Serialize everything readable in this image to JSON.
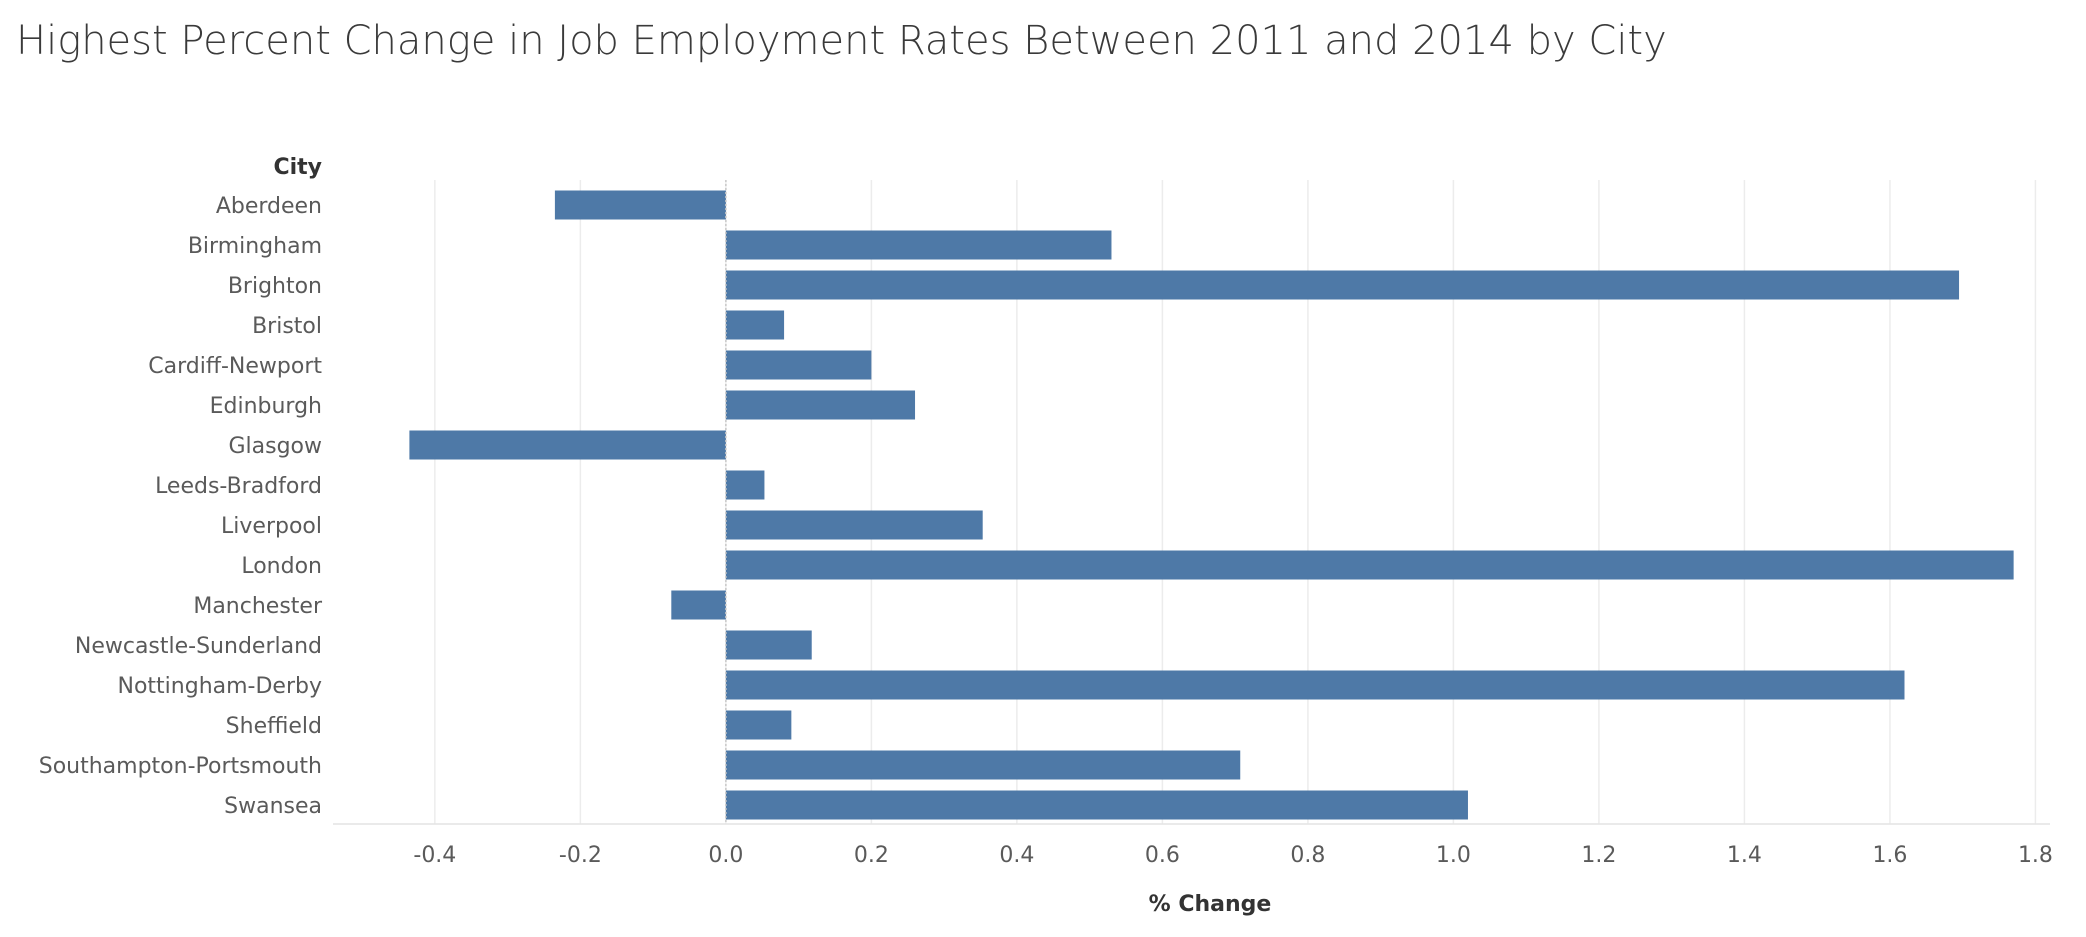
{
  "title": "Highest Percent Change in Job Employment Rates Between 2011 and 2014 by City",
  "chart_data": {
    "type": "bar",
    "orientation": "horizontal",
    "title": "Highest Percent Change in Job Employment Rates Between 2011 and 2014 by City",
    "ylabel": "City",
    "xlabel": "% Change",
    "categories": [
      "Aberdeen",
      "Birmingham",
      "Brighton",
      "Bristol",
      "Cardiff-Newport",
      "Edinburgh",
      "Glasgow",
      "Leeds-Bradford",
      "Liverpool",
      "London",
      "Manchester",
      "Newcastle-Sunderland",
      "Nottingham-Derby",
      "Sheffield",
      "Southampton-Portsmouth",
      "Swansea"
    ],
    "values": [
      -0.235,
      0.53,
      1.695,
      0.08,
      0.2,
      0.26,
      -0.435,
      0.053,
      0.353,
      1.77,
      -0.075,
      0.118,
      1.62,
      0.09,
      0.707,
      1.02
    ],
    "xlim": [
      -0.54,
      1.82
    ],
    "xticks": [
      -0.4,
      -0.2,
      0.0,
      0.2,
      0.4,
      0.6,
      0.8,
      1.0,
      1.2,
      1.4,
      1.6,
      1.8
    ],
    "xtick_labels": [
      "-0.4",
      "-0.2",
      "0.0",
      "0.2",
      "0.4",
      "0.6",
      "0.8",
      "1.0",
      "1.2",
      "1.4",
      "1.6",
      "1.8"
    ],
    "grid": true,
    "bar_color": "#4e79a7",
    "grid_color": "#ececec"
  }
}
